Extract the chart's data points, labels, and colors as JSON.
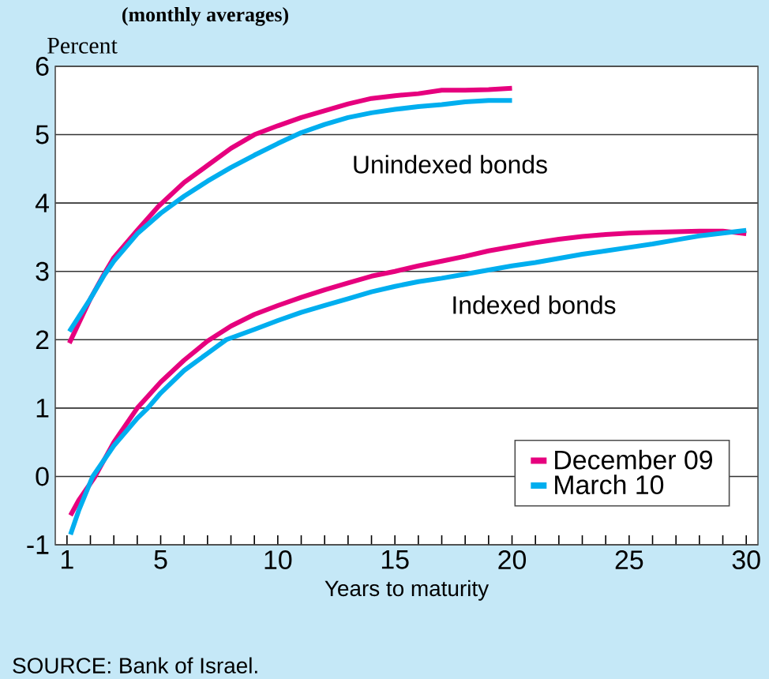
{
  "chart_data": {
    "type": "line",
    "title": "(monthly averages)",
    "ylabel": "Percent",
    "xlabel": "Years to maturity",
    "xlim": [
      0.5,
      30.5
    ],
    "ylim": [
      -1,
      6
    ],
    "xticks": [
      {
        "value": 1,
        "label": "1"
      },
      {
        "value": 2,
        "label": null
      },
      {
        "value": 3,
        "label": null
      },
      {
        "value": 4,
        "label": null
      },
      {
        "value": 5,
        "label": "5"
      },
      {
        "value": 6,
        "label": null
      },
      {
        "value": 7,
        "label": null
      },
      {
        "value": 8,
        "label": null
      },
      {
        "value": 9,
        "label": null
      },
      {
        "value": 10,
        "label": "10"
      },
      {
        "value": 11,
        "label": null
      },
      {
        "value": 12,
        "label": null
      },
      {
        "value": 13,
        "label": null
      },
      {
        "value": 14,
        "label": null
      },
      {
        "value": 15,
        "label": "15"
      },
      {
        "value": 16,
        "label": null
      },
      {
        "value": 17,
        "label": null
      },
      {
        "value": 18,
        "label": null
      },
      {
        "value": 19,
        "label": null
      },
      {
        "value": 20,
        "label": "20"
      },
      {
        "value": 21,
        "label": null
      },
      {
        "value": 22,
        "label": null
      },
      {
        "value": 23,
        "label": null
      },
      {
        "value": 24,
        "label": null
      },
      {
        "value": 25,
        "label": "25"
      },
      {
        "value": 26,
        "label": null
      },
      {
        "value": 27,
        "label": null
      },
      {
        "value": 28,
        "label": null
      },
      {
        "value": 29,
        "label": null
      },
      {
        "value": 30,
        "label": "30"
      }
    ],
    "yticks": [
      -1,
      0,
      1,
      2,
      3,
      4,
      5,
      6
    ],
    "grid": "y",
    "legend": "bottom right",
    "marker": "none",
    "line_style": "solid",
    "series": [
      {
        "name": "December 09",
        "color": "#e6007e",
        "x": [
          1.1,
          2,
          2.6,
          3,
          4,
          4.9,
          6,
          7,
          8,
          9,
          10,
          11,
          12,
          13,
          14,
          15,
          16,
          17,
          18,
          19,
          20
        ],
        "values": [
          1.95,
          2.6,
          2.97,
          3.2,
          3.6,
          3.95,
          4.3,
          4.55,
          4.8,
          5.0,
          5.13,
          5.25,
          5.35,
          5.45,
          5.53,
          5.57,
          5.6,
          5.65,
          5.65,
          5.66,
          5.68
        ]
      },
      {
        "name": "March 10",
        "color": "#00aeef",
        "x": [
          1.1,
          2,
          2.6,
          3,
          4,
          5,
          6,
          7,
          8,
          9,
          10,
          11,
          12,
          13,
          14,
          15,
          16,
          17,
          18,
          19,
          20
        ],
        "values": [
          2.12,
          2.6,
          2.95,
          3.15,
          3.55,
          3.85,
          4.1,
          4.32,
          4.52,
          4.7,
          4.87,
          5.03,
          5.15,
          5.25,
          5.32,
          5.37,
          5.41,
          5.44,
          5.48,
          5.5,
          5.5
        ]
      },
      {
        "color": "#e6007e",
        "x": [
          1.15,
          1.5,
          2.2,
          3,
          4,
          5,
          6,
          7,
          8,
          9,
          10,
          11,
          12,
          13,
          14,
          15,
          16,
          17,
          18,
          19,
          20,
          21,
          22,
          23,
          24,
          25,
          26,
          27,
          28,
          29,
          30
        ],
        "values": [
          -0.57,
          -0.35,
          0,
          0.5,
          1.0,
          1.38,
          1.7,
          1.98,
          2.2,
          2.37,
          2.5,
          2.62,
          2.73,
          2.83,
          2.93,
          3.0,
          3.08,
          3.15,
          3.22,
          3.3,
          3.36,
          3.42,
          3.47,
          3.51,
          3.54,
          3.56,
          3.57,
          3.58,
          3.59,
          3.59,
          3.55
        ]
      },
      {
        "color": "#00aeef",
        "x": [
          1.15,
          1.5,
          2.1,
          3,
          4,
          4.45,
          5,
          6,
          7,
          7.8,
          9,
          10,
          11,
          12,
          13,
          14,
          15,
          16,
          17,
          18,
          19,
          20,
          21,
          22,
          23,
          24,
          25,
          26,
          27,
          28,
          29,
          30
        ],
        "values": [
          -0.85,
          -0.5,
          0,
          0.45,
          0.85,
          1.0,
          1.22,
          1.55,
          1.8,
          2.0,
          2.15,
          2.28,
          2.4,
          2.5,
          2.6,
          2.7,
          2.78,
          2.85,
          2.9,
          2.96,
          3.02,
          3.08,
          3.13,
          3.19,
          3.25,
          3.3,
          3.35,
          3.4,
          3.46,
          3.52,
          3.56,
          3.6
        ]
      }
    ],
    "annotations": [
      "Unindexed bonds",
      "Indexed bonds",
      "SOURCE: Bank of Israel."
    ]
  }
}
